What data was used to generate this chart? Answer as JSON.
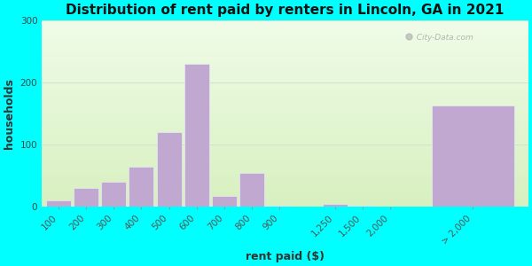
{
  "title": "Distribution of rent paid by renters in Lincoln, GA in 2021",
  "xlabel": "rent paid ($)",
  "ylabel": "households",
  "background_color": "#00FFFF",
  "bar_color": "#c0a8d0",
  "categories": [
    "100",
    "200",
    "300",
    "400",
    "500",
    "600",
    "700",
    "800",
    "900",
    "1,250",
    "1,500",
    "2,000",
    "> 2,000"
  ],
  "values": [
    10,
    30,
    40,
    65,
    120,
    230,
    18,
    55,
    2,
    5,
    2,
    0,
    163
  ],
  "ylim": [
    0,
    300
  ],
  "yticks": [
    0,
    100,
    200,
    300
  ],
  "title_fontsize": 11,
  "axis_label_fontsize": 9,
  "tick_fontsize": 7.5,
  "bar_positions": [
    0.5,
    1.5,
    2.5,
    3.5,
    4.5,
    5.5,
    6.5,
    7.5,
    8.5,
    10.5,
    11.5,
    12.5,
    15.5
  ],
  "bar_widths": [
    0.9,
    0.9,
    0.9,
    0.9,
    0.9,
    0.9,
    0.9,
    0.9,
    0.9,
    0.9,
    0.9,
    0.9,
    3.0
  ],
  "xlim": [
    -0.1,
    17.5
  ],
  "gradient_top": "#f0fce8",
  "gradient_bottom": "#d8f0c0",
  "watermark": "  City-Data.com"
}
